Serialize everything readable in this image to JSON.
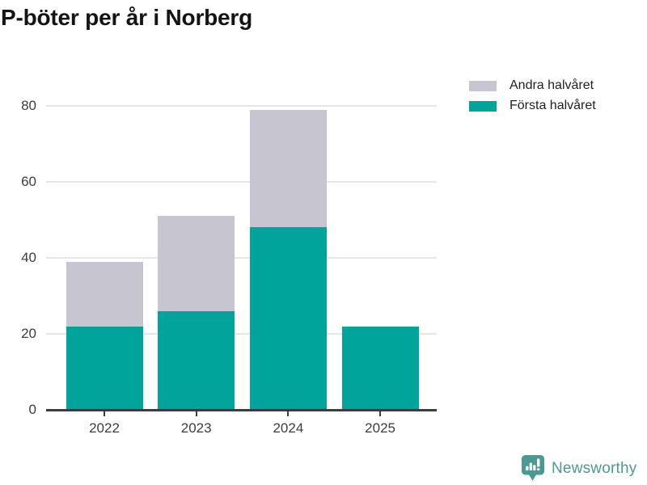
{
  "title": "P-böter per år i Norberg",
  "footer": {
    "brand": "Newsworthy"
  },
  "chart_data": {
    "type": "bar",
    "stacked": true,
    "title": "P-böter per år i Norberg",
    "xlabel": "",
    "ylabel": "",
    "categories": [
      "2022",
      "2023",
      "2024",
      "2025"
    ],
    "series": [
      {
        "name": "Första halvåret",
        "color": "#00a49a",
        "values": [
          22,
          26,
          48,
          22
        ]
      },
      {
        "name": "Andra halvåret",
        "color": "#c7c5d0",
        "values": [
          17,
          25,
          31,
          0
        ]
      }
    ],
    "totals": [
      39,
      51,
      79,
      22
    ],
    "ylim": [
      0,
      84
    ],
    "yticks": [
      0,
      20,
      40,
      60,
      80
    ],
    "grid": true,
    "legend_position": "top-right",
    "legend_order_top_to_bottom": [
      "Andra halvåret",
      "Första halvåret"
    ]
  },
  "colors": {
    "axis": "#3d3d3d",
    "gridline": "#e6e6e6",
    "tick_text": "#3d3d3d",
    "title_text": "#141414",
    "legend_text": "#1f1f1f",
    "brand_teal": "#4a9a94",
    "background": "#ffffff"
  }
}
